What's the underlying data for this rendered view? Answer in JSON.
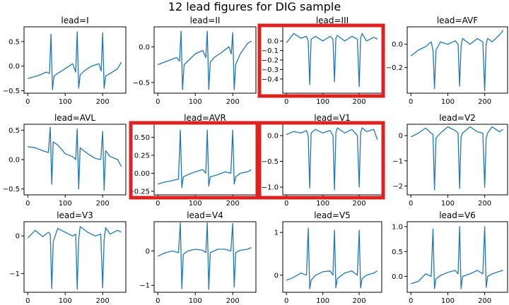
{
  "figure": {
    "title": "12 lead figures for DIG sample"
  },
  "chart_data": [
    {
      "type": "line",
      "title": "lead=I",
      "xlim": [
        -10,
        262
      ],
      "ylim": [
        -0.55,
        0.8
      ],
      "xticks": [
        0,
        100,
        200
      ],
      "yticks": [
        -0.5,
        0,
        0.5
      ],
      "ytick_labels": [
        "−0.5",
        "0.0",
        "0.5"
      ],
      "highlighted": false,
      "x": [
        0,
        25,
        50,
        58,
        62,
        66,
        70,
        80,
        100,
        120,
        128,
        132,
        136,
        140,
        150,
        170,
        190,
        196,
        200,
        204,
        208,
        220,
        240,
        250
      ],
      "y": [
        -0.25,
        -0.2,
        -0.12,
        -0.15,
        0.65,
        -0.48,
        -0.2,
        -0.15,
        -0.05,
        0.05,
        -0.12,
        0.7,
        -0.45,
        -0.18,
        -0.1,
        0.0,
        0.05,
        -0.1,
        0.68,
        -0.45,
        -0.2,
        -0.15,
        -0.05,
        0.08
      ]
    },
    {
      "type": "line",
      "title": "lead=II",
      "xlim": [
        -10,
        262
      ],
      "ylim": [
        -0.65,
        0.28
      ],
      "xticks": [
        0,
        100,
        200
      ],
      "yticks": [
        -0.5,
        0.0
      ],
      "ytick_labels": [
        "−0.5",
        "0.0"
      ],
      "highlighted": false,
      "x": [
        0,
        25,
        50,
        58,
        62,
        66,
        70,
        80,
        100,
        120,
        128,
        132,
        136,
        140,
        150,
        170,
        190,
        196,
        200,
        204,
        208,
        220,
        240,
        250
      ],
      "y": [
        -0.25,
        -0.2,
        -0.15,
        -0.2,
        0.22,
        -0.6,
        -0.25,
        -0.2,
        -0.1,
        -0.05,
        -0.15,
        0.22,
        -0.6,
        -0.22,
        -0.15,
        -0.08,
        0.0,
        -0.1,
        0.2,
        -0.6,
        -0.25,
        -0.1,
        0.05,
        0.08
      ]
    },
    {
      "type": "line",
      "title": "lead=III",
      "xlim": [
        -10,
        262
      ],
      "ylim": [
        -0.55,
        0.15
      ],
      "xticks": [
        0,
        100,
        200
      ],
      "yticks": [
        -0.4,
        -0.3,
        -0.2,
        -0.1,
        0.0
      ],
      "ytick_labels": [
        "−0.4",
        "−0.3",
        "−0.2",
        "−0.1",
        "0.0"
      ],
      "highlighted": true,
      "x": [
        0,
        20,
        40,
        55,
        60,
        64,
        68,
        80,
        100,
        120,
        128,
        132,
        136,
        140,
        160,
        180,
        195,
        200,
        204,
        208,
        220,
        240,
        250
      ],
      "y": [
        -0.02,
        0.08,
        0.03,
        0.05,
        0.0,
        -0.46,
        0.02,
        0.05,
        0.0,
        0.05,
        0.02,
        -0.43,
        0.03,
        0.06,
        0.0,
        0.05,
        0.02,
        -0.48,
        0.03,
        0.08,
        0.0,
        0.04,
        0.02
      ]
    },
    {
      "type": "line",
      "title": "lead=AVF",
      "xlim": [
        -10,
        262
      ],
      "ylim": [
        -0.42,
        0.15
      ],
      "xticks": [
        0,
        100,
        200
      ],
      "yticks": [
        -0.2,
        0.0
      ],
      "ytick_labels": [
        "−0.2",
        "0.0"
      ],
      "highlighted": false,
      "x": [
        0,
        20,
        40,
        55,
        60,
        64,
        68,
        80,
        100,
        120,
        128,
        132,
        136,
        140,
        160,
        180,
        195,
        200,
        204,
        208,
        220,
        240,
        250
      ],
      "y": [
        -0.1,
        -0.05,
        -0.02,
        0.02,
        -0.05,
        -0.38,
        -0.05,
        0.02,
        0.0,
        0.03,
        0.0,
        -0.36,
        -0.02,
        0.05,
        0.0,
        0.05,
        0.02,
        -0.4,
        0.0,
        0.05,
        0.02,
        0.08,
        0.12
      ]
    },
    {
      "type": "line",
      "title": "lead=AVL",
      "xlim": [
        -10,
        262
      ],
      "ylim": [
        -0.6,
        0.6
      ],
      "xticks": [
        0,
        100,
        200
      ],
      "yticks": [
        -0.5,
        0.0,
        0.5
      ],
      "ytick_labels": [
        "−0.5",
        "0.0",
        "0.5"
      ],
      "highlighted": false,
      "x": [
        0,
        20,
        40,
        55,
        60,
        64,
        68,
        80,
        100,
        120,
        128,
        132,
        136,
        140,
        160,
        180,
        195,
        200,
        204,
        208,
        220,
        240,
        250
      ],
      "y": [
        0.22,
        0.2,
        0.15,
        0.12,
        0.55,
        -0.42,
        0.3,
        0.25,
        0.1,
        0.05,
        0.0,
        0.52,
        -0.5,
        0.2,
        0.1,
        0.02,
        0.0,
        0.48,
        -0.52,
        0.15,
        0.05,
        0.0,
        -0.12
      ]
    },
    {
      "type": "line",
      "title": "lead=AVR",
      "xlim": [
        -10,
        262
      ],
      "ylim": [
        -0.3,
        0.68
      ],
      "xticks": [
        0,
        100,
        200
      ],
      "yticks": [
        -0.25,
        0.0,
        0.25,
        0.5
      ],
      "ytick_labels": [
        "−0.25",
        "0.00",
        "0.25",
        "0.50"
      ],
      "highlighted": true,
      "x": [
        0,
        20,
        40,
        55,
        60,
        64,
        68,
        80,
        100,
        120,
        128,
        132,
        136,
        140,
        160,
        180,
        195,
        200,
        204,
        208,
        220,
        240,
        250
      ],
      "y": [
        -0.15,
        -0.12,
        -0.1,
        -0.08,
        0.6,
        -0.2,
        -0.05,
        -0.02,
        0.02,
        0.05,
        0.0,
        0.6,
        -0.18,
        -0.05,
        -0.02,
        0.02,
        0.0,
        0.6,
        -0.15,
        -0.05,
        0.0,
        0.02,
        0.05
      ]
    },
    {
      "type": "line",
      "title": "lead=V1",
      "xlim": [
        -10,
        262
      ],
      "ylim": [
        -1.15,
        0.22
      ],
      "xticks": [
        0,
        100,
        200
      ],
      "yticks": [
        -1.0,
        -0.5,
        0.0
      ],
      "ytick_labels": [
        "−1.0",
        "−0.5",
        "0.0"
      ],
      "highlighted": true,
      "x": [
        0,
        20,
        40,
        55,
        60,
        64,
        68,
        80,
        100,
        120,
        128,
        132,
        136,
        140,
        160,
        180,
        195,
        200,
        204,
        208,
        220,
        240,
        250
      ],
      "y": [
        0.02,
        0.08,
        0.05,
        0.1,
        0.0,
        -1.02,
        0.05,
        0.12,
        0.05,
        0.1,
        0.0,
        -1.05,
        0.05,
        0.15,
        0.05,
        0.12,
        0.0,
        -1.0,
        0.05,
        0.15,
        0.08,
        0.12,
        -0.08
      ]
    },
    {
      "type": "line",
      "title": "lead=V2",
      "xlim": [
        -10,
        262
      ],
      "ylim": [
        -2.35,
        0.45
      ],
      "xticks": [
        0,
        100,
        200
      ],
      "yticks": [
        -2,
        -1,
        0
      ],
      "ytick_labels": [
        "−2",
        "−1",
        "0"
      ],
      "highlighted": false,
      "x": [
        0,
        20,
        40,
        55,
        60,
        64,
        68,
        80,
        100,
        120,
        128,
        132,
        136,
        140,
        160,
        180,
        195,
        200,
        204,
        208,
        220,
        240,
        250
      ],
      "y": [
        -0.05,
        0.1,
        0.3,
        0.1,
        0.05,
        -2.15,
        -0.1,
        0.1,
        0.35,
        0.2,
        0.1,
        -2.1,
        -0.05,
        0.1,
        0.35,
        0.15,
        0.1,
        -2.05,
        -0.1,
        0.1,
        0.35,
        0.15,
        0.25
      ]
    },
    {
      "type": "line",
      "title": "lead=V3",
      "xlim": [
        -10,
        262
      ],
      "ylim": [
        -1.5,
        0.38
      ],
      "xticks": [
        0,
        100,
        200
      ],
      "yticks": [
        -1,
        0
      ],
      "ytick_labels": [
        "−1",
        "0"
      ],
      "highlighted": false,
      "x": [
        0,
        20,
        40,
        55,
        60,
        64,
        68,
        80,
        100,
        120,
        128,
        132,
        136,
        140,
        160,
        180,
        195,
        200,
        204,
        208,
        220,
        240,
        250
      ],
      "y": [
        -0.05,
        0.15,
        -0.02,
        0.1,
        0.05,
        -1.4,
        -0.15,
        0.2,
        0.1,
        0.0,
        0.05,
        -1.42,
        -0.1,
        0.25,
        0.1,
        0.0,
        0.05,
        -1.38,
        -0.1,
        0.22,
        0.05,
        0.15,
        0.1
      ]
    },
    {
      "type": "line",
      "title": "lead=V4",
      "xlim": [
        -10,
        262
      ],
      "ylim": [
        -1.2,
        0.85
      ],
      "xticks": [
        0,
        100,
        200
      ],
      "yticks": [
        -1,
        0
      ],
      "ytick_labels": [
        "−1",
        "0"
      ],
      "highlighted": false,
      "x": [
        0,
        20,
        40,
        55,
        60,
        64,
        68,
        80,
        100,
        120,
        128,
        132,
        136,
        140,
        160,
        180,
        195,
        200,
        204,
        208,
        220,
        240,
        250
      ],
      "y": [
        -0.15,
        -0.05,
        0.0,
        -0.05,
        0.82,
        -1.1,
        -0.1,
        0.0,
        0.05,
        0.02,
        -0.05,
        0.82,
        -1.12,
        -0.05,
        0.05,
        0.05,
        0.0,
        0.8,
        -1.05,
        -0.05,
        0.02,
        0.05,
        0.1
      ]
    },
    {
      "type": "line",
      "title": "lead=V5",
      "xlim": [
        -10,
        262
      ],
      "ylim": [
        -0.4,
        1.25
      ],
      "xticks": [
        0,
        100,
        200
      ],
      "yticks": [
        0,
        1
      ],
      "ytick_labels": [
        "0",
        "1"
      ],
      "highlighted": false,
      "x": [
        0,
        20,
        40,
        55,
        60,
        64,
        68,
        80,
        100,
        120,
        128,
        132,
        136,
        140,
        160,
        180,
        195,
        200,
        204,
        208,
        220,
        240,
        250
      ],
      "y": [
        -0.12,
        -0.05,
        0.05,
        0.0,
        1.1,
        -0.32,
        -0.12,
        0.0,
        0.08,
        0.1,
        0.0,
        1.05,
        -0.3,
        -0.08,
        0.05,
        0.1,
        0.0,
        1.05,
        -0.3,
        -0.08,
        0.0,
        0.05,
        0.1
      ]
    },
    {
      "type": "line",
      "title": "lead=V6",
      "xlim": [
        -10,
        262
      ],
      "ylim": [
        -0.32,
        1.1
      ],
      "xticks": [
        0,
        100,
        200
      ],
      "yticks": [
        0.0,
        0.5,
        1.0
      ],
      "ytick_labels": [
        "0.0",
        "0.5",
        "1.0"
      ],
      "highlighted": false,
      "x": [
        0,
        20,
        40,
        55,
        60,
        64,
        68,
        80,
        100,
        120,
        128,
        132,
        136,
        140,
        160,
        180,
        195,
        200,
        204,
        208,
        220,
        240,
        250
      ],
      "y": [
        -0.15,
        -0.1,
        0.05,
        0.0,
        0.95,
        -0.25,
        -0.05,
        0.02,
        0.08,
        0.12,
        0.05,
        1.0,
        -0.25,
        0.0,
        0.05,
        0.12,
        0.05,
        1.0,
        -0.22,
        0.0,
        0.05,
        0.1,
        0.12
      ]
    }
  ]
}
